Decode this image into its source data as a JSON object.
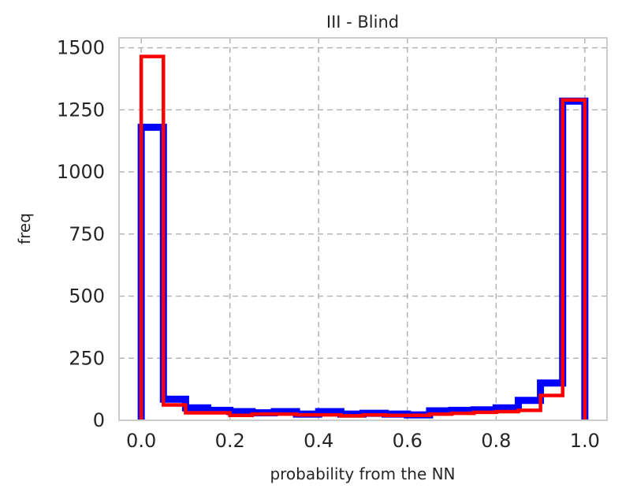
{
  "chart_data": {
    "type": "histogram-step",
    "title": "III - Blind",
    "xlabel": "probability from the NN",
    "ylabel": "freq",
    "xlim": [
      -0.05,
      1.05
    ],
    "ylim": [
      0,
      1540
    ],
    "xticks": [
      0.0,
      0.2,
      0.4,
      0.6,
      0.8,
      1.0
    ],
    "xtick_labels": [
      "0.0",
      "0.2",
      "0.4",
      "0.6",
      "0.8",
      "1.0"
    ],
    "yticks": [
      0,
      250,
      500,
      750,
      1000,
      1250,
      1500
    ],
    "ytick_labels": [
      "0",
      "250",
      "500",
      "750",
      "1000",
      "1250",
      "1500"
    ],
    "grid": true,
    "bin_edges": [
      0.0,
      0.05,
      0.1,
      0.15,
      0.2,
      0.25,
      0.3,
      0.35,
      0.4,
      0.45,
      0.5,
      0.55,
      0.6,
      0.65,
      0.7,
      0.75,
      0.8,
      0.85,
      0.9,
      0.95,
      1.0
    ],
    "series": [
      {
        "color": "#0000ff",
        "values": [
          1180,
          85,
          50,
          40,
          35,
          30,
          35,
          25,
          35,
          25,
          28,
          25,
          22,
          38,
          40,
          42,
          50,
          80,
          150,
          1285
        ]
      },
      {
        "color": "#ff0000",
        "values": [
          1465,
          62,
          30,
          30,
          20,
          25,
          25,
          22,
          22,
          18,
          22,
          20,
          20,
          25,
          28,
          32,
          35,
          40,
          100,
          1290
        ]
      }
    ]
  }
}
